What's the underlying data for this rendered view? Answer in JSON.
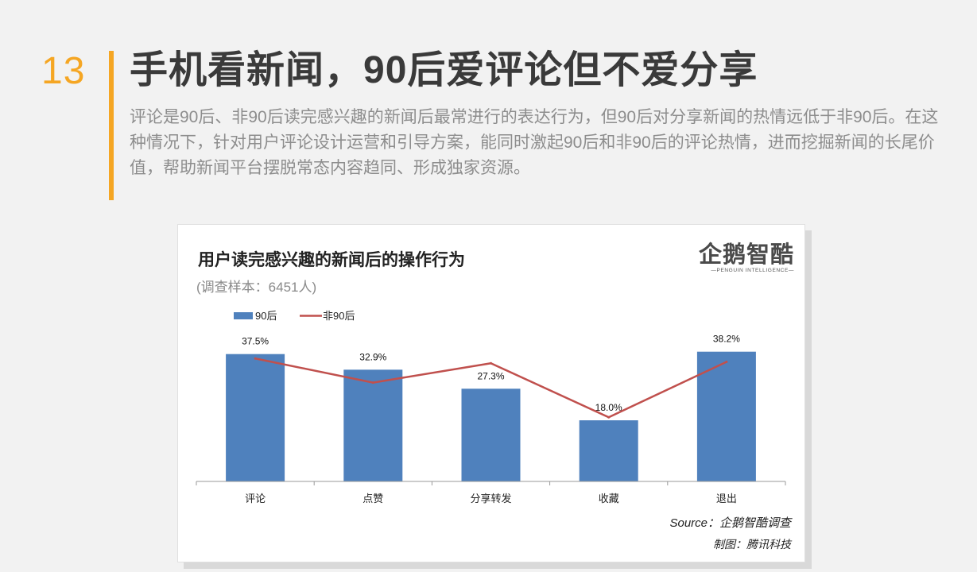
{
  "header": {
    "page_number": "13",
    "title": "手机看新闻，90后爱评论但不爱分享",
    "summary": "评论是90后、非90后读完感兴趣的新闻后最常进行的表达行为，但90后对分享新闻的热情远低于非90后。在这种情况下，针对用户评论设计运营和引导方案，能同时激起90后和非90后的评论热情，进而挖掘新闻的长尾价值，帮助新闻平台摆脱常态内容趋同、形成独家资源。",
    "accent_color": "#f5a623"
  },
  "logo": {
    "name": "企鹅智酷",
    "subtitle": "—PENGUIN INTELLIGENCE—"
  },
  "chart_data": {
    "type": "bar",
    "title": "用户读完感兴趣的新闻后的操作行为",
    "subtitle": "(调查样本：6451人)",
    "categories": [
      "评论",
      "点赞",
      "分享转发",
      "收藏",
      "退出"
    ],
    "series": [
      {
        "name": "90后",
        "kind": "bar",
        "color": "#4f81bd",
        "values": [
          37.5,
          32.9,
          27.3,
          18.0,
          38.2
        ],
        "labels": [
          "37.5%",
          "32.9%",
          "27.3%",
          "18.0%",
          "38.2%"
        ]
      },
      {
        "name": "非90后",
        "kind": "line",
        "color": "#c0504d",
        "values": [
          36.2,
          29.1,
          34.8,
          18.9,
          35.2
        ]
      }
    ],
    "ylim": [
      0,
      40
    ],
    "legend_position": "top-left",
    "grid": false
  },
  "footer": {
    "source": "Source：企鹅智酷调查",
    "credit": "制图：腾讯科技"
  }
}
